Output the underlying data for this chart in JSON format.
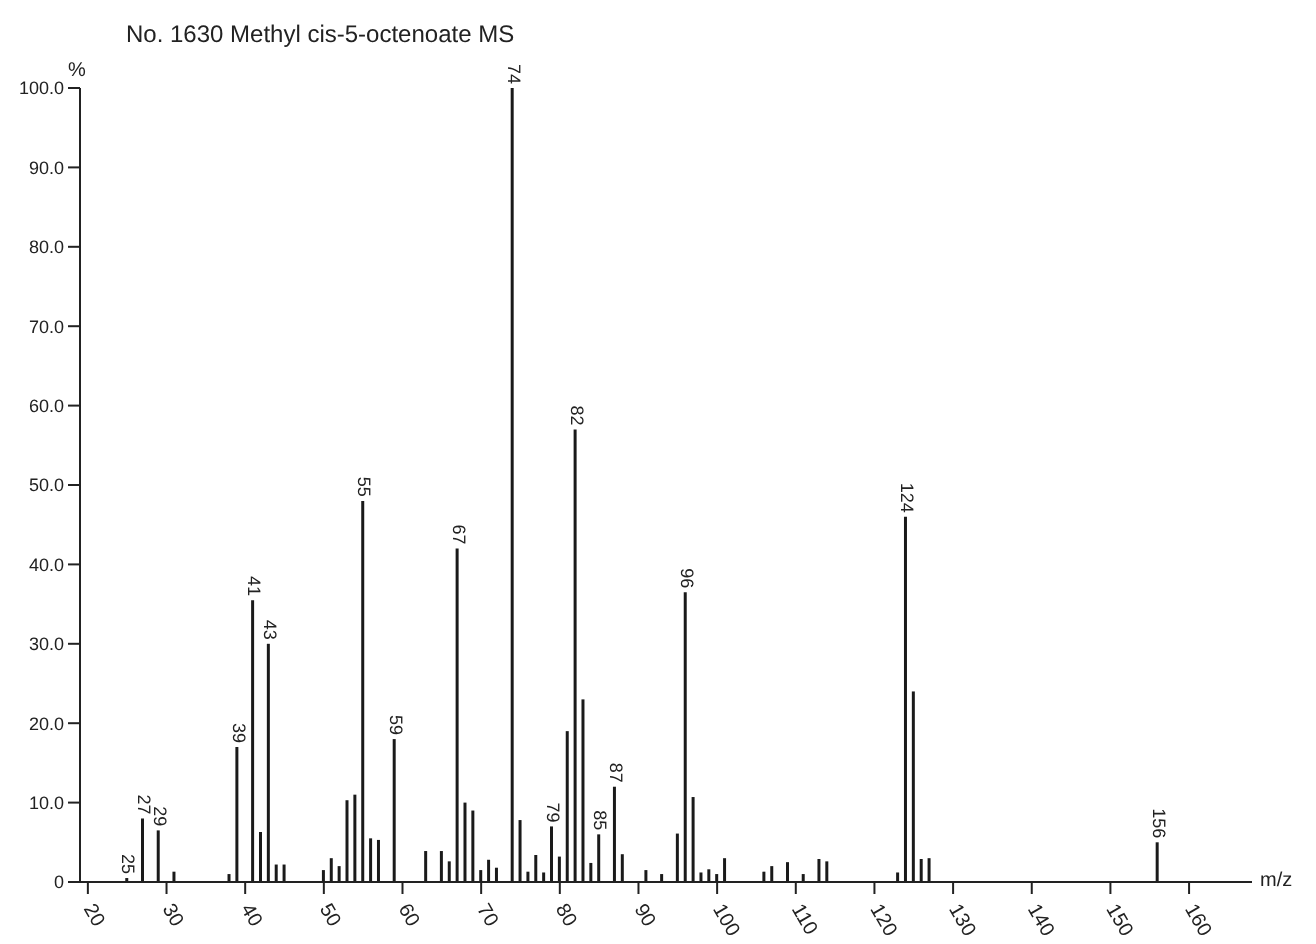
{
  "chart_data": {
    "type": "bar",
    "title": "No. 1630 Methyl cis-5-octenoate MS",
    "xlabel": "m/z",
    "ylabel": "%",
    "color": "#1a1a1a",
    "x": [
      25,
      27,
      29,
      31,
      38,
      39,
      41,
      42,
      43,
      44,
      45,
      50,
      51,
      52,
      53,
      54,
      55,
      56,
      57,
      59,
      63,
      65,
      66,
      67,
      68,
      69,
      70,
      71,
      72,
      74,
      75,
      76,
      77,
      78,
      79,
      80,
      81,
      82,
      83,
      84,
      85,
      87,
      88,
      91,
      93,
      95,
      96,
      97,
      98,
      99,
      100,
      101,
      106,
      107,
      109,
      111,
      113,
      114,
      123,
      124,
      125,
      126,
      127,
      156
    ],
    "values": [
      0.5,
      8,
      6.5,
      1.3,
      1,
      17,
      35.5,
      6.3,
      30,
      2.2,
      2.2,
      1.5,
      3,
      2,
      10.3,
      11,
      48,
      5.5,
      5.3,
      18,
      3.9,
      3.9,
      2.6,
      42,
      10,
      9,
      1.5,
      2.8,
      1.8,
      100,
      7.8,
      1.3,
      3.4,
      1.2,
      7,
      3.2,
      19,
      57,
      23,
      2.4,
      6,
      12,
      3.5,
      1.5,
      1,
      6.1,
      36.5,
      10.7,
      1.2,
      1.6,
      1,
      3,
      1.3,
      2,
      2.5,
      1,
      2.9,
      2.6,
      1.2,
      46,
      24,
      2.9,
      3,
      5
    ],
    "annotations": [
      {
        "text": "25",
        "x": 25,
        "y": 0.5
      },
      {
        "text": "27",
        "x": 27,
        "y": 8
      },
      {
        "text": "29",
        "x": 29,
        "y": 6.5
      },
      {
        "text": "39",
        "x": 39,
        "y": 17
      },
      {
        "text": "41",
        "x": 41,
        "y": 35.5
      },
      {
        "text": "43",
        "x": 43,
        "y": 30
      },
      {
        "text": "55",
        "x": 55,
        "y": 48
      },
      {
        "text": "59",
        "x": 59,
        "y": 18
      },
      {
        "text": "67",
        "x": 67,
        "y": 42
      },
      {
        "text": "74",
        "x": 74,
        "y": 100
      },
      {
        "text": "79",
        "x": 79,
        "y": 7
      },
      {
        "text": "82",
        "x": 82,
        "y": 57
      },
      {
        "text": "85",
        "x": 85,
        "y": 6
      },
      {
        "text": "87",
        "x": 87,
        "y": 12
      },
      {
        "text": "96",
        "x": 96,
        "y": 36.5
      },
      {
        "text": "124",
        "x": 124,
        "y": 46
      },
      {
        "text": "156",
        "x": 156,
        "y": 5
      }
    ],
    "xlim": [
      19,
      168
    ],
    "xticks": [
      20,
      30,
      40,
      50,
      60,
      70,
      80,
      90,
      100,
      110,
      120,
      130,
      140,
      150,
      160
    ],
    "ylim": [
      0,
      100
    ],
    "yticks": [
      0,
      {
        "value": 10,
        "label": "10.0"
      },
      {
        "value": 20,
        "label": "20.0"
      },
      {
        "value": 30,
        "label": "30.0"
      },
      {
        "value": 40,
        "label": "40.0"
      },
      {
        "value": 50,
        "label": "50.0"
      },
      {
        "value": 60,
        "label": "60.0"
      },
      {
        "value": 70,
        "label": "70.0"
      },
      {
        "value": 80,
        "label": "80.0"
      },
      {
        "value": 90,
        "label": "90.0"
      },
      {
        "value": 100,
        "label": "100.0"
      }
    ],
    "grid": false,
    "legend": false
  }
}
